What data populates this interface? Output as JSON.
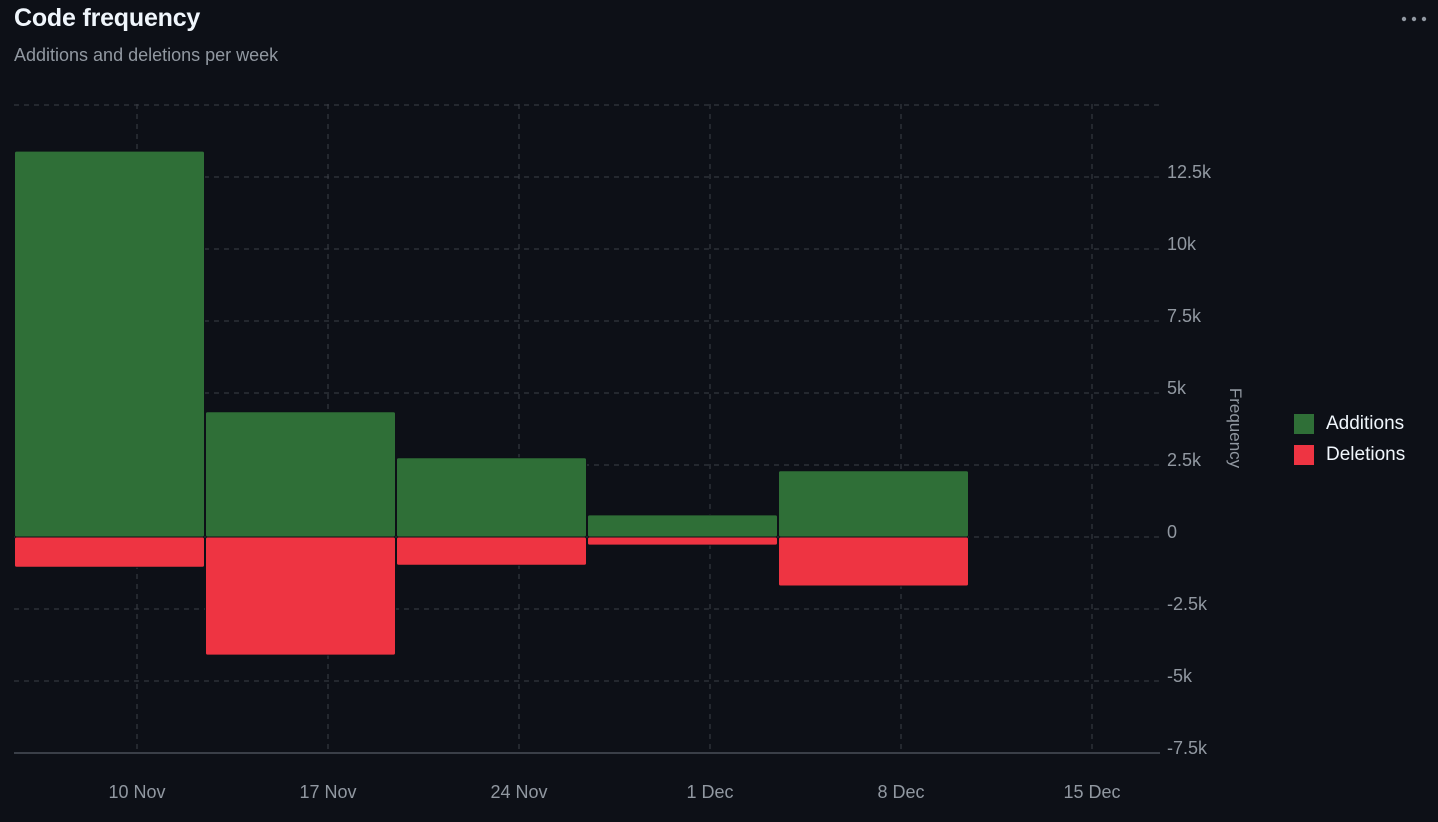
{
  "header": {
    "title": "Code frequency",
    "subtitle": "Additions and deletions per week"
  },
  "menu_icon": "kebab-horizontal-icon",
  "colors": {
    "background": "#0d1017",
    "additions": "#2f6f37",
    "deletions": "#ee3442",
    "grid": "#3b3f47",
    "text_muted": "#9198a1",
    "text_primary": "#f0f6fc"
  },
  "chart_data": {
    "type": "bar",
    "title": "Code frequency",
    "subtitle": "Additions and deletions per week",
    "ylabel": "Frequency",
    "xlabel": "",
    "x_ticks": [
      "10 Nov",
      "17 Nov",
      "24 Nov",
      "1 Dec",
      "8 Dec",
      "15 Dec"
    ],
    "y_ticks": [
      {
        "value": 12500,
        "label": "12.5k"
      },
      {
        "value": 10000,
        "label": "10k"
      },
      {
        "value": 7500,
        "label": "7.5k"
      },
      {
        "value": 5000,
        "label": "5k"
      },
      {
        "value": 2500,
        "label": "2.5k"
      },
      {
        "value": 0,
        "label": "0"
      },
      {
        "value": -2500,
        "label": "-2.5k"
      },
      {
        "value": -5000,
        "label": "-5k"
      },
      {
        "value": -7500,
        "label": "-7.5k"
      }
    ],
    "ylim": [
      -7500,
      15000
    ],
    "grid": true,
    "legend_position": "right",
    "bar_weeks": [
      "10 Nov",
      "17 Nov",
      "24 Nov",
      "1 Dec",
      "8 Dec"
    ],
    "series": [
      {
        "name": "Additions",
        "color": "#2f6f37",
        "values": [
          13400,
          4350,
          2750,
          770,
          2300
        ]
      },
      {
        "name": "Deletions",
        "color": "#ee3442",
        "values": [
          -1050,
          -4100,
          -980,
          -280,
          -1700
        ]
      }
    ]
  }
}
